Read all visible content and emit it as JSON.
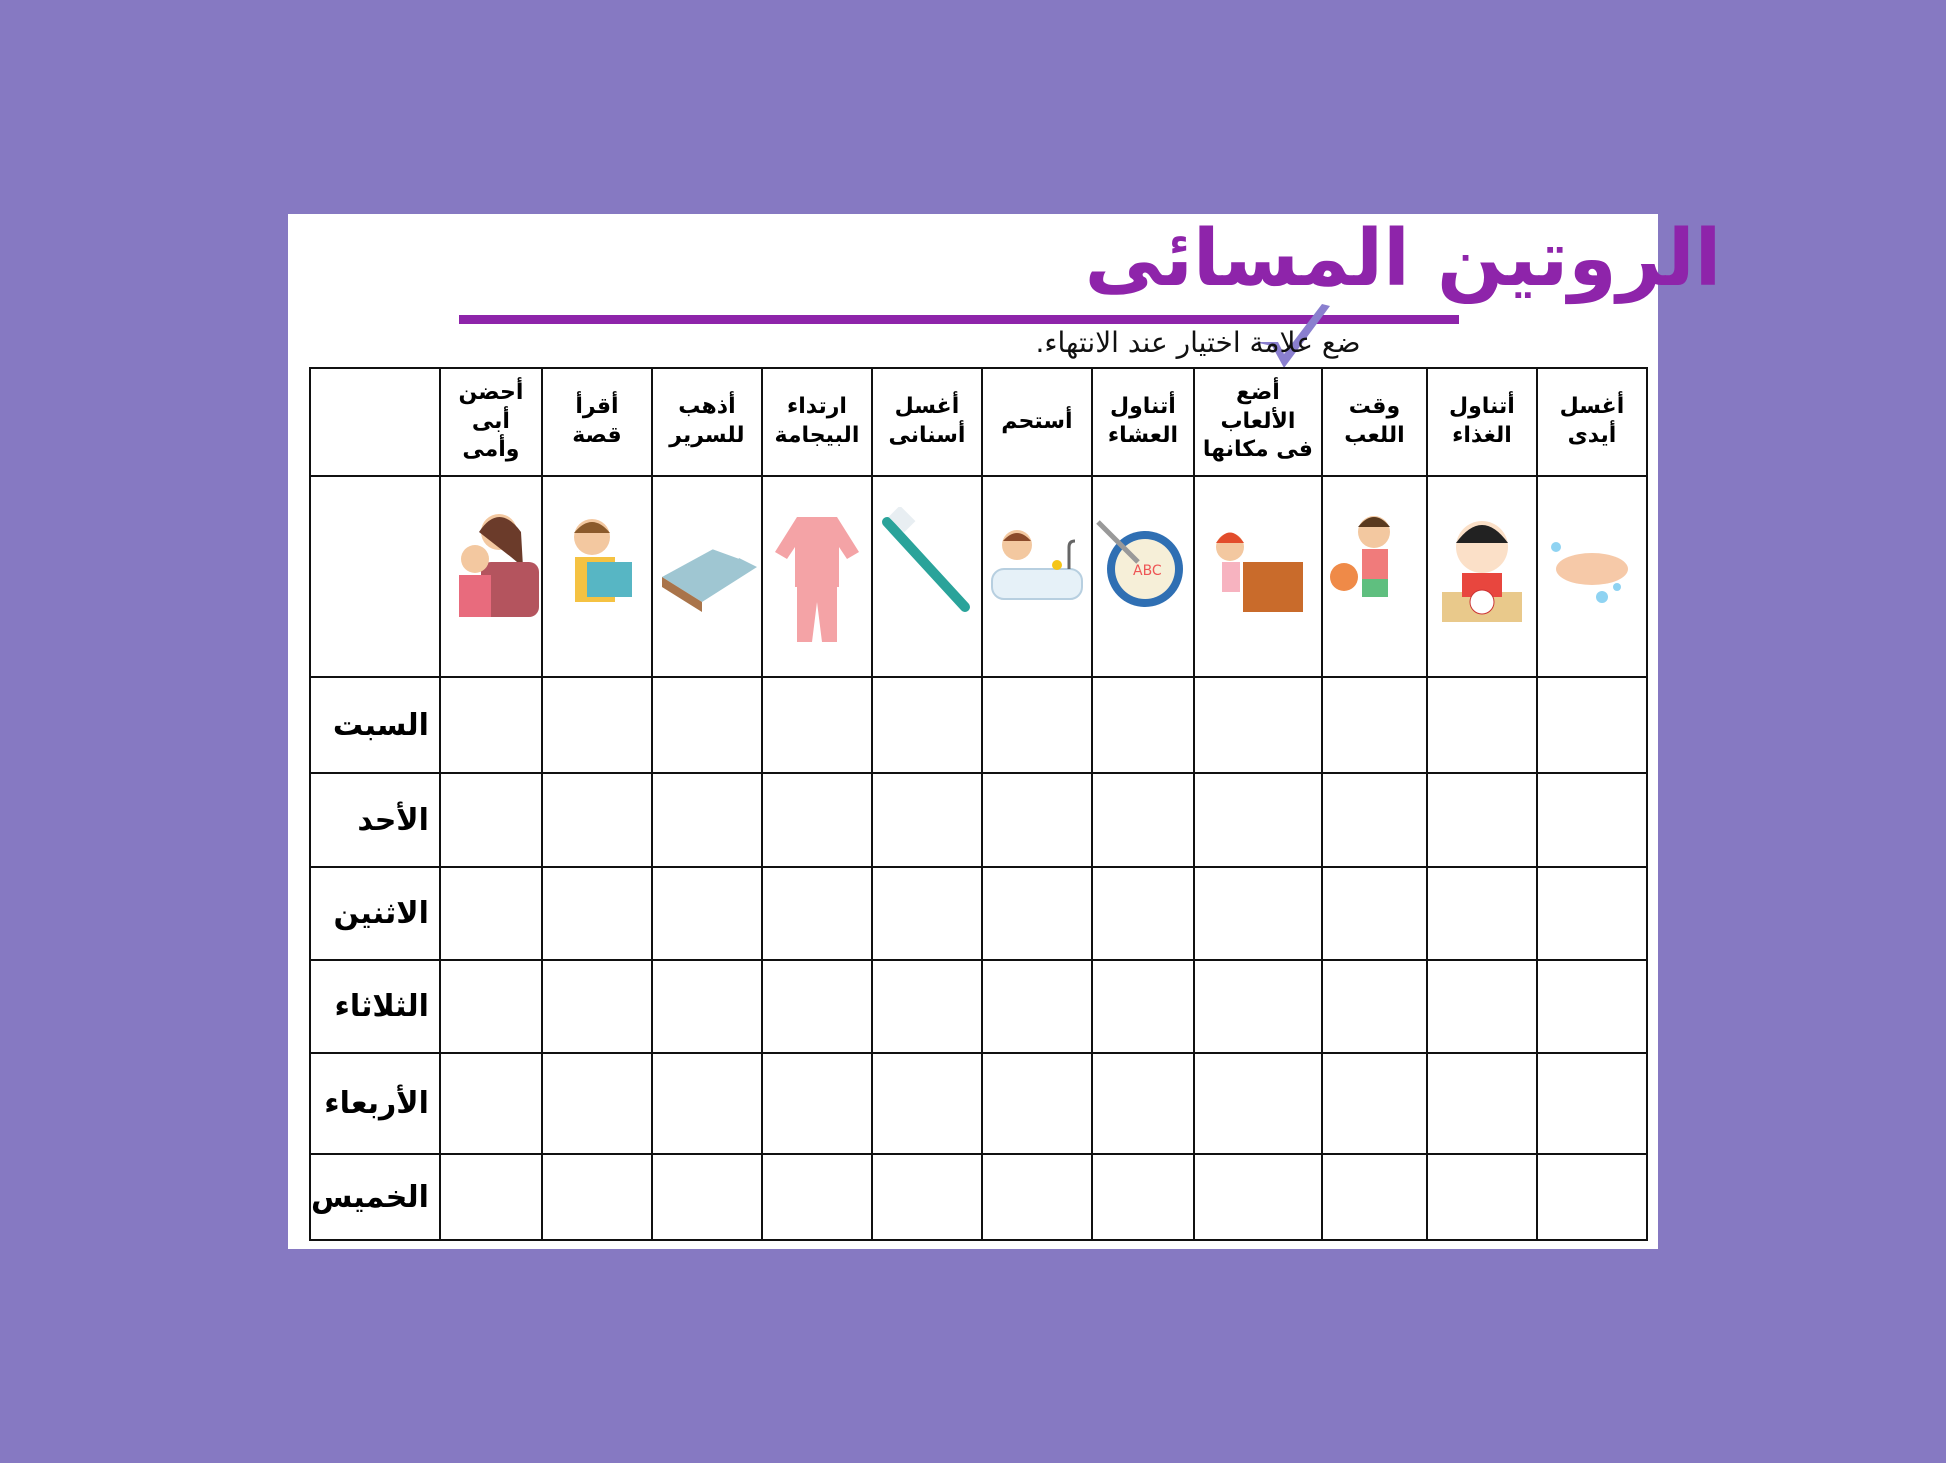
{
  "title": "الروتين المسائى",
  "subtitle": "ضع علامة اختيار عند الانتهاء.",
  "colors": {
    "background": "#8679c2",
    "accent": "#8e24aa",
    "check": "#8a7fcf"
  },
  "columns": [
    {
      "label": "أغسل\nأيدى",
      "icon": "hand-washing-icon"
    },
    {
      "label": "أتناول\nالغذاء",
      "icon": "girl-eating-icon"
    },
    {
      "label": "وقت\nاللعب",
      "icon": "boy-playing-ball-icon"
    },
    {
      "label": "أضع\nالألعاب\nفى مكانها",
      "icon": "toy-box-icon"
    },
    {
      "label": "أتناول\nالعشاء",
      "icon": "soup-bowl-icon"
    },
    {
      "label": "أستحم",
      "icon": "bathtub-icon"
    },
    {
      "label": "أغسل\nأسنانى",
      "icon": "toothbrush-icon"
    },
    {
      "label": "ارتداء\nالبيجامة",
      "icon": "pajamas-icon"
    },
    {
      "label": "أذهب\nللسرير",
      "icon": "bed-icon"
    },
    {
      "label": "أقرأ\nقصة",
      "icon": "boy-reading-icon"
    },
    {
      "label": "أحضن\nأبى\nوأمى",
      "icon": "mother-hug-icon"
    }
  ],
  "days": [
    "السبت",
    "الأحد",
    "الاثنين",
    "الثلاثاء",
    "الأربعاء",
    "الخميس"
  ]
}
